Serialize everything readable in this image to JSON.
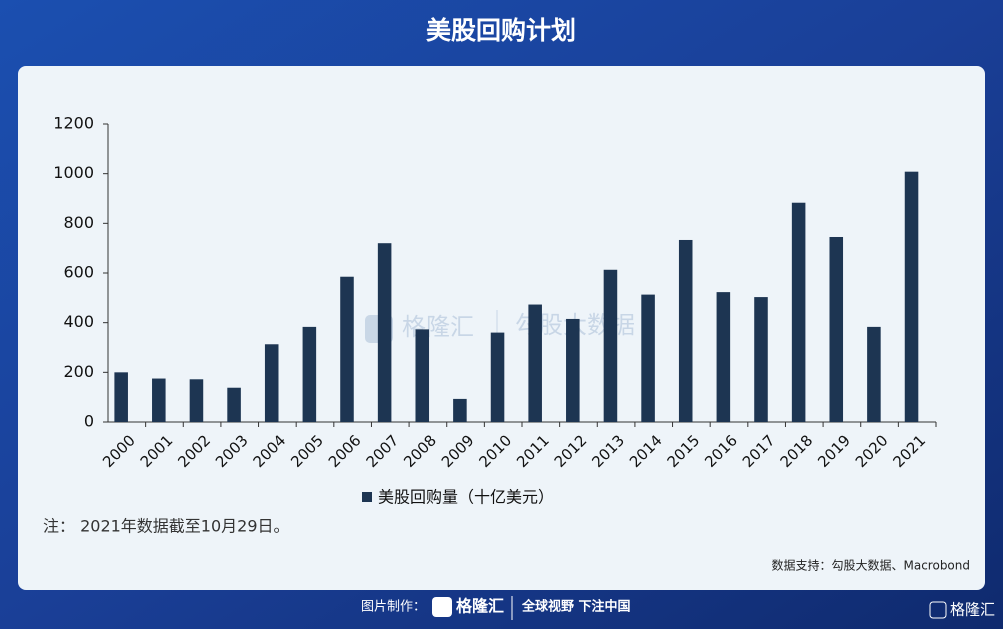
{
  "chart_data": {
    "type": "bar",
    "title": "美股回购计划",
    "categories": [
      "2000",
      "2001",
      "2002",
      "2003",
      "2004",
      "2005",
      "2006",
      "2007",
      "2008",
      "2009",
      "2010",
      "2011",
      "2012",
      "2013",
      "2014",
      "2015",
      "2016",
      "2017",
      "2018",
      "2019",
      "2020",
      "2021"
    ],
    "series": [
      {
        "name": "美股回购量（十亿美元）",
        "color": "#1d3552",
        "values": [
          200,
          175,
          172,
          138,
          313,
          383,
          585,
          720,
          373,
          93,
          360,
          473,
          415,
          613,
          513,
          733,
          523,
          503,
          883,
          745,
          383,
          1008
        ]
      }
    ],
    "ylim": [
      0,
      1200
    ],
    "yticks": [
      0,
      200,
      400,
      600,
      800,
      1000,
      1200
    ],
    "grid": false,
    "note": "注： 2021年数据截至10月29日。",
    "source": "数据支持：勾股大数据、Macrobond"
  },
  "watermark": {
    "brand": "格隆汇",
    "partner": "勾股大数据"
  },
  "footer": {
    "label": "图片制作：",
    "brand": "格隆汇",
    "slogan": "全球视野 下注中国",
    "corner": "格隆汇"
  }
}
